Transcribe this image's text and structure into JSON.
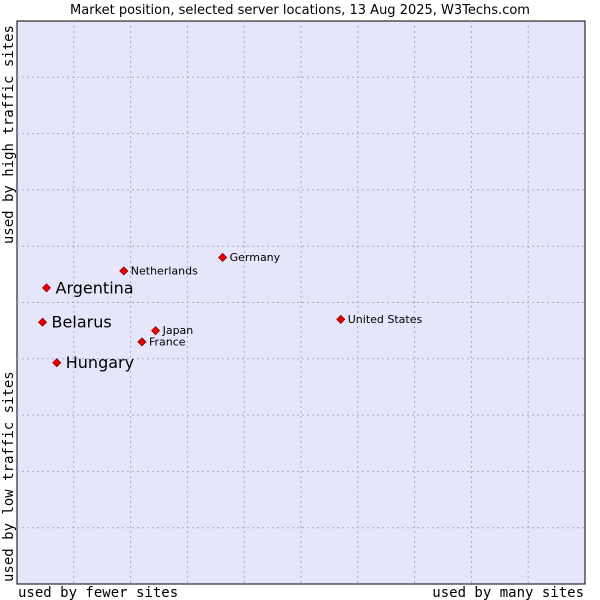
{
  "chart_data": {
    "type": "scatter",
    "title": "Market position, selected server locations, 13 Aug 2025, W3Techs.com",
    "xlabel_left": "used by fewer sites",
    "xlabel_right": "used by many sites",
    "ylabel_top": "used by high traffic sites",
    "ylabel_bottom": "used by low traffic sites",
    "grid": true,
    "colors": {
      "plot_background": "#e6e6fa",
      "grid": "#a8a8c8",
      "marker": "#ee0000",
      "marker_edge": "#880000"
    },
    "x_range": [
      0,
      10
    ],
    "y_range": [
      0,
      10
    ],
    "points": [
      {
        "label": "Argentina",
        "x": 0.52,
        "y": 5.26,
        "emphasis": true
      },
      {
        "label": "Belarus",
        "x": 0.45,
        "y": 4.65,
        "emphasis": true
      },
      {
        "label": "Hungary",
        "x": 0.7,
        "y": 3.93,
        "emphasis": true
      },
      {
        "label": "Netherlands",
        "x": 1.88,
        "y": 5.56,
        "emphasis": false
      },
      {
        "label": "Germany",
        "x": 3.62,
        "y": 5.8,
        "emphasis": false
      },
      {
        "label": "Japan",
        "x": 2.44,
        "y": 4.5,
        "emphasis": false
      },
      {
        "label": "France",
        "x": 2.2,
        "y": 4.3,
        "emphasis": false
      },
      {
        "label": "United States",
        "x": 5.7,
        "y": 4.7,
        "emphasis": false
      }
    ]
  }
}
